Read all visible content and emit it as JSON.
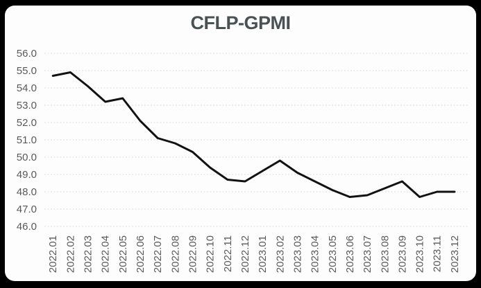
{
  "chart_data": {
    "type": "line",
    "title": "CFLP-GPMI",
    "categories": [
      "2022.01",
      "2022.02",
      "2022.03",
      "2022.04",
      "2022.05",
      "2022.06",
      "2022.07",
      "2022.08",
      "2022.09",
      "2022.10",
      "2022.11",
      "2022.12",
      "2023.01",
      "2023.02",
      "2023.03",
      "2023.04",
      "2023.05",
      "2023.06",
      "2023.07",
      "2023.08",
      "2023.09",
      "2023.10",
      "2023.11",
      "2023.12"
    ],
    "series": [
      {
        "name": "CFLP-GPMI",
        "values": [
          54.7,
          54.9,
          54.1,
          53.2,
          53.4,
          52.1,
          51.1,
          50.8,
          50.3,
          49.4,
          48.7,
          48.6,
          49.2,
          49.8,
          49.1,
          48.6,
          48.1,
          47.7,
          47.8,
          48.2,
          48.6,
          47.7,
          48.0,
          48.0
        ],
        "color": "#121212"
      }
    ],
    "xlabel": "",
    "ylabel": "",
    "ylim": [
      46.0,
      56.0
    ],
    "yticks": [
      56.0,
      55.0,
      54.0,
      53.0,
      52.0,
      51.0,
      50.0,
      49.0,
      48.0,
      47.0,
      46.0
    ],
    "ytick_decimals": 1,
    "x_tick_rotation_deg": -90,
    "grid": "horizontal dashed",
    "legend": "none",
    "marker": "none",
    "styles": {
      "frame_bg": "#000000",
      "card_bg": "#fdfdfd",
      "title_color": "#4a5155",
      "tick_label_color": "#595959",
      "gridline_color": "#d6dee0",
      "line_color": "#121212"
    }
  }
}
